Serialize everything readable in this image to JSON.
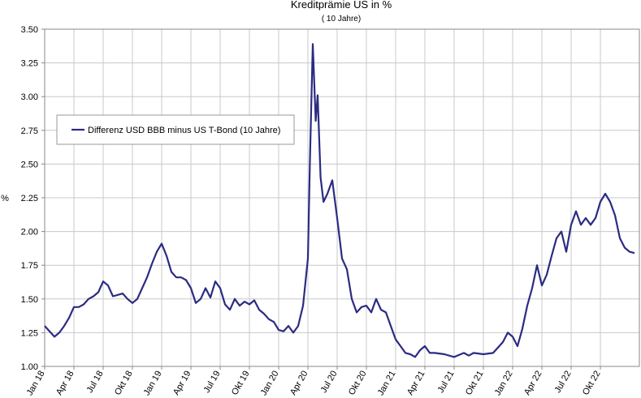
{
  "chart_data": {
    "type": "line",
    "title": "Kreditprämie US in %",
    "subtitle": "( 10 Jahre)",
    "ylabel": "%",
    "legend": "upper-left",
    "series": [
      {
        "name": "Differenz USD BBB minus US T-Bond (10 Jahre)",
        "color": "#2b2b83",
        "x": [
          0,
          0.5,
          1,
          1.5,
          2,
          2.5,
          3,
          3.5,
          4,
          4.5,
          5,
          5.5,
          6,
          6.5,
          7,
          7.5,
          8,
          8.5,
          9,
          9.5,
          10,
          10.5,
          11,
          11.5,
          12,
          12.5,
          13,
          13.5,
          14,
          14.5,
          15,
          15.5,
          16,
          16.5,
          17,
          17.5,
          18,
          18.5,
          19,
          19.5,
          20,
          20.5,
          21,
          21.5,
          22,
          22.5,
          23,
          23.5,
          24,
          24.5,
          25,
          25.5,
          26,
          26.5,
          27,
          27.2,
          27.5,
          27.8,
          28,
          28.3,
          28.6,
          29,
          29.5,
          30,
          30.5,
          31,
          31.5,
          32,
          32.5,
          33,
          33.5,
          34,
          34.5,
          35,
          35.5,
          36,
          36.5,
          37,
          37.5,
          38,
          38.5,
          39,
          39.5,
          40,
          41,
          42,
          43,
          43.5,
          44,
          45,
          46,
          47,
          47.5,
          48,
          48.5,
          49,
          49.5,
          50,
          50.5,
          51,
          51.5,
          52,
          52.5,
          53,
          53.5,
          54,
          54.5,
          55,
          55.5,
          56,
          56.5,
          57,
          57.5,
          58,
          58.5,
          59,
          59.5,
          60,
          60.5
        ],
        "values": [
          1.3,
          1.26,
          1.22,
          1.25,
          1.3,
          1.36,
          1.44,
          1.44,
          1.46,
          1.5,
          1.52,
          1.55,
          1.63,
          1.6,
          1.52,
          1.53,
          1.54,
          1.5,
          1.47,
          1.5,
          1.58,
          1.66,
          1.76,
          1.85,
          1.91,
          1.82,
          1.7,
          1.66,
          1.66,
          1.64,
          1.58,
          1.47,
          1.5,
          1.58,
          1.51,
          1.63,
          1.58,
          1.46,
          1.42,
          1.5,
          1.45,
          1.48,
          1.46,
          1.49,
          1.42,
          1.39,
          1.35,
          1.33,
          1.27,
          1.26,
          1.3,
          1.25,
          1.3,
          1.45,
          1.8,
          2.5,
          3.39,
          2.82,
          3.01,
          2.4,
          2.22,
          2.28,
          2.38,
          2.1,
          1.8,
          1.72,
          1.5,
          1.4,
          1.44,
          1.45,
          1.4,
          1.5,
          1.42,
          1.4,
          1.3,
          1.2,
          1.15,
          1.1,
          1.09,
          1.07,
          1.12,
          1.15,
          1.1,
          1.1,
          1.09,
          1.07,
          1.1,
          1.08,
          1.1,
          1.09,
          1.1,
          1.18,
          1.25,
          1.22,
          1.15,
          1.28,
          1.45,
          1.58,
          1.75,
          1.6,
          1.68,
          1.82,
          1.95,
          2.0,
          1.85,
          2.05,
          2.15,
          2.05,
          2.1,
          2.05,
          2.1,
          2.22,
          2.28,
          2.22,
          2.12,
          1.95,
          1.88,
          1.85,
          1.84
        ]
      }
    ],
    "xlim": [
      0,
      61
    ],
    "xticks": [
      {
        "value": 0,
        "label": "Jan 18"
      },
      {
        "value": 3,
        "label": "Apr 18"
      },
      {
        "value": 6,
        "label": "Jul 18"
      },
      {
        "value": 9,
        "label": "Okt 18"
      },
      {
        "value": 12,
        "label": "Jan 19"
      },
      {
        "value": 15,
        "label": "Apr 19"
      },
      {
        "value": 18,
        "label": "Jul 19"
      },
      {
        "value": 21,
        "label": "Okt 19"
      },
      {
        "value": 24,
        "label": "Jan 20"
      },
      {
        "value": 27,
        "label": "Apr 20"
      },
      {
        "value": 30,
        "label": "Jul 20"
      },
      {
        "value": 33,
        "label": "Okt 20"
      },
      {
        "value": 36,
        "label": "Jan 21"
      },
      {
        "value": 39,
        "label": "Apr 21"
      },
      {
        "value": 42,
        "label": "Jul 21"
      },
      {
        "value": 45,
        "label": "Okt 21"
      },
      {
        "value": 48,
        "label": "Jan 22"
      },
      {
        "value": 51,
        "label": "Apr 22"
      },
      {
        "value": 54,
        "label": "Jul 22"
      },
      {
        "value": 57,
        "label": "Okt 22"
      }
    ],
    "ylim": [
      1.0,
      3.5
    ],
    "yticks": [
      {
        "value": 1.0,
        "label": "1.00"
      },
      {
        "value": 1.25,
        "label": "1.25"
      },
      {
        "value": 1.5,
        "label": "1.50"
      },
      {
        "value": 1.75,
        "label": "1.75"
      },
      {
        "value": 2.0,
        "label": "2.00"
      },
      {
        "value": 2.25,
        "label": "2.25"
      },
      {
        "value": 2.5,
        "label": "2.50"
      },
      {
        "value": 2.75,
        "label": "2.75"
      },
      {
        "value": 3.0,
        "label": "3.00"
      },
      {
        "value": 3.25,
        "label": "3.25"
      },
      {
        "value": 3.5,
        "label": "3.50"
      }
    ],
    "grid": true
  }
}
